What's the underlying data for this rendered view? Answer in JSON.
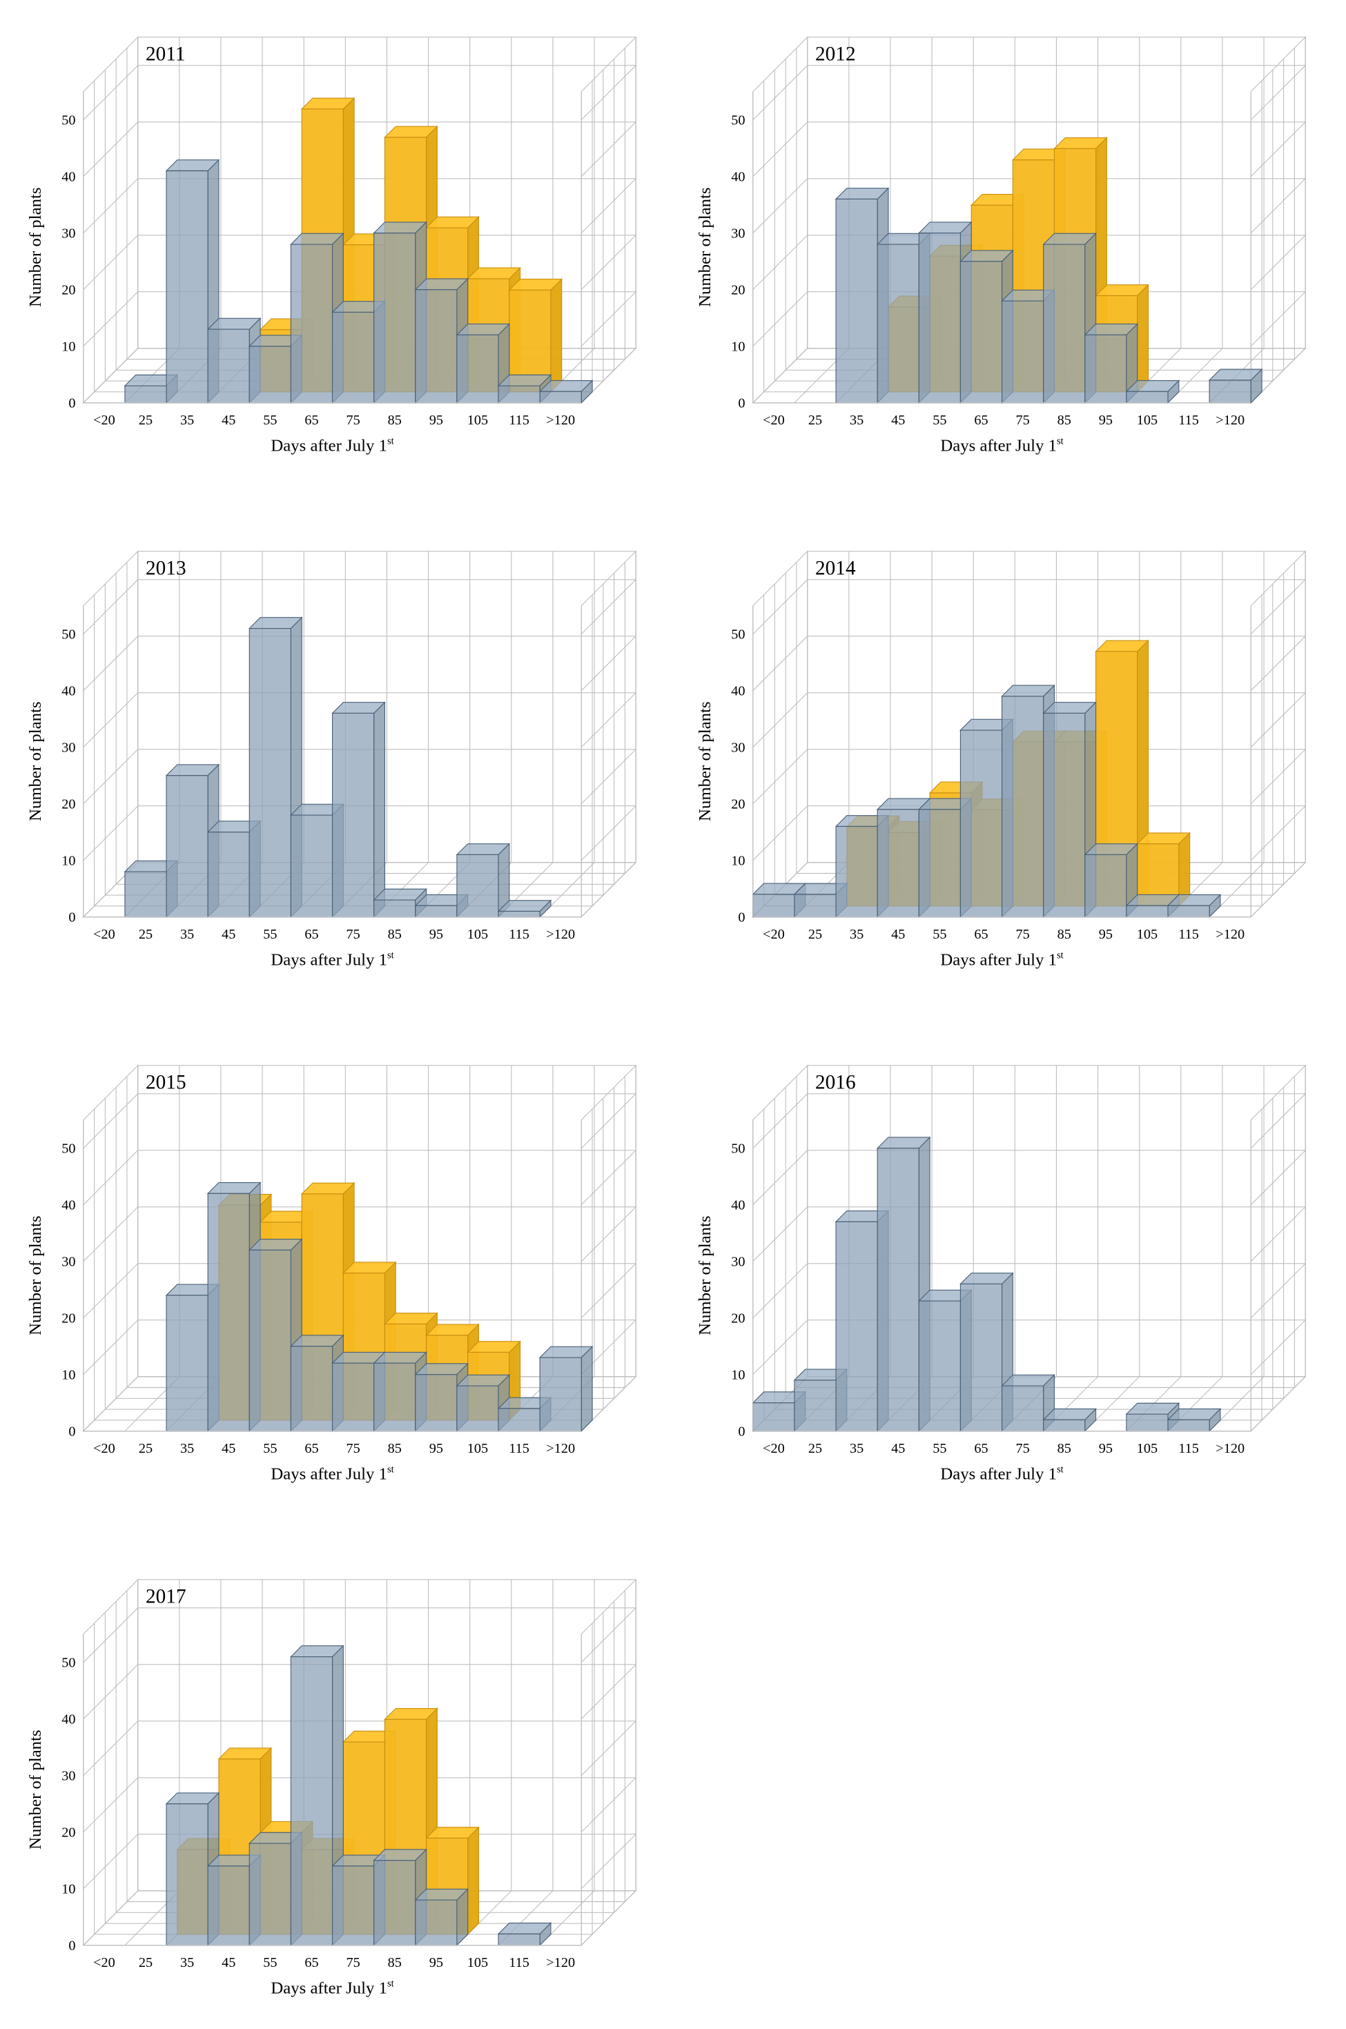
{
  "figure": {
    "type": "grid-of-3d-histograms",
    "layout": {
      "rows": 4,
      "cols": 2,
      "panels": 7,
      "panel_arrangement": [
        [
          "2011",
          "2012"
        ],
        [
          "2013",
          "2014"
        ],
        [
          "2015",
          "2016"
        ],
        [
          "2017",
          null
        ]
      ]
    },
    "shared": {
      "x_label": "Days after July 1",
      "x_label_superscript": "st",
      "y_label": "Number of plants",
      "x_categories": [
        "<20",
        "25",
        "35",
        "45",
        "55",
        "65",
        "75",
        "85",
        "95",
        "105",
        "115",
        ">120"
      ],
      "y_ticks": [
        0,
        10,
        20,
        30,
        40,
        50
      ],
      "ylim": [
        0,
        55
      ],
      "depth_ticks": 5,
      "colors": {
        "series_blue": {
          "fill": "#8fa3b8",
          "stroke": "#4a6178",
          "opacity": 0.75
        },
        "series_orange": {
          "fill": "#f5b81f",
          "stroke": "#c98e0f",
          "opacity": 0.95
        },
        "grid_line": "#bfbfbf",
        "floor": "#ffffff",
        "background": "#ffffff",
        "text": "#000000"
      },
      "fonts": {
        "year_label_size": 26,
        "axis_label_size": 22,
        "tick_label_size": 18
      },
      "bar_gap": 0
    },
    "panels": [
      {
        "year": "2011",
        "series": [
          {
            "name": "orange",
            "z": 1,
            "values": [
              0,
              0,
              0,
              0,
              11,
              50,
              26,
              45,
              29,
              20,
              18,
              0
            ]
          },
          {
            "name": "blue",
            "z": 0,
            "values": [
              0,
              3,
              41,
              13,
              10,
              28,
              16,
              30,
              20,
              12,
              3,
              2
            ]
          }
        ]
      },
      {
        "year": "2012",
        "series": [
          {
            "name": "orange",
            "z": 1,
            "values": [
              0,
              0,
              0,
              15,
              24,
              33,
              41,
              43,
              17,
              0,
              0,
              0
            ]
          },
          {
            "name": "blue",
            "z": 0,
            "values": [
              0,
              0,
              36,
              28,
              30,
              25,
              18,
              28,
              12,
              2,
              0,
              4
            ]
          }
        ]
      },
      {
        "year": "2013",
        "series": [
          {
            "name": "blue",
            "z": 0,
            "values": [
              0,
              8,
              25,
              15,
              51,
              18,
              36,
              3,
              2,
              11,
              1,
              0
            ]
          }
        ]
      },
      {
        "year": "2014",
        "series": [
          {
            "name": "orange",
            "z": 1,
            "values": [
              0,
              0,
              14,
              13,
              20,
              17,
              29,
              29,
              45,
              11,
              0,
              0
            ]
          },
          {
            "name": "blue",
            "z": 0,
            "values": [
              4,
              4,
              16,
              19,
              19,
              33,
              39,
              36,
              11,
              2,
              2,
              0
            ]
          }
        ]
      },
      {
        "year": "2015",
        "series": [
          {
            "name": "orange",
            "z": 1,
            "values": [
              0,
              0,
              0,
              38,
              35,
              40,
              26,
              17,
              15,
              12,
              0,
              0
            ]
          },
          {
            "name": "blue",
            "z": 0,
            "values": [
              0,
              0,
              24,
              42,
              32,
              15,
              12,
              12,
              10,
              8,
              4,
              13
            ]
          }
        ]
      },
      {
        "year": "2016",
        "series": [
          {
            "name": "blue",
            "z": 0,
            "values": [
              5,
              9,
              37,
              50,
              23,
              26,
              8,
              2,
              0,
              3,
              2,
              0
            ]
          }
        ]
      },
      {
        "year": "2017",
        "series": [
          {
            "name": "orange",
            "z": 1,
            "values": [
              0,
              0,
              15,
              31,
              18,
              15,
              34,
              38,
              17,
              0,
              0,
              0
            ]
          },
          {
            "name": "blue",
            "z": 0,
            "values": [
              0,
              0,
              25,
              14,
              18,
              51,
              14,
              15,
              8,
              0,
              2,
              0
            ]
          }
        ]
      }
    ]
  }
}
